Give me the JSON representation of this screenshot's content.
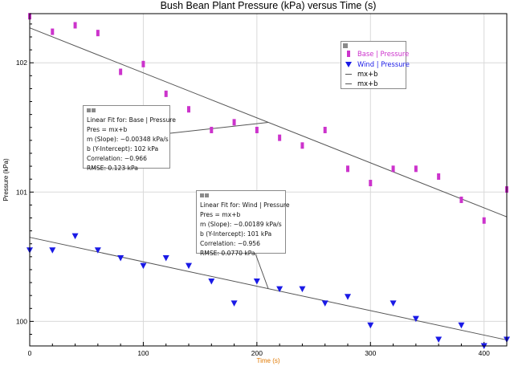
{
  "chart_data": {
    "type": "scatter",
    "title": "Bush Bean Plant Pressure (kPa) versus Time (s)",
    "xlabel": "Time (s)",
    "ylabel": "Pressure (kPa)",
    "xlim": [
      0,
      420
    ],
    "ylim": [
      99.81,
      102.38
    ],
    "xticks": [
      0,
      100,
      200,
      300,
      400
    ],
    "yticks": [
      100,
      101,
      102
    ],
    "grid": true,
    "x_minor_ticks_every": 20,
    "series": [
      {
        "name": "Base | Pressure",
        "color": "#cc33cc",
        "marker": "bar",
        "x": [
          0,
          20,
          40,
          60,
          80,
          100,
          120,
          140,
          160,
          180,
          200,
          220,
          240,
          260,
          280,
          300,
          320,
          340,
          360,
          380,
          400,
          420
        ],
        "y": [
          102.36,
          102.24,
          102.29,
          102.23,
          101.93,
          101.99,
          101.76,
          101.64,
          101.48,
          101.54,
          101.48,
          101.42,
          101.36,
          101.48,
          101.18,
          101.07,
          101.18,
          101.18,
          101.12,
          100.94,
          100.78,
          101.02
        ]
      },
      {
        "name": "Wind | Pressure",
        "color": "#1a1ae6",
        "marker": "triangle-down",
        "x": [
          0,
          20,
          40,
          60,
          80,
          100,
          120,
          140,
          160,
          180,
          200,
          220,
          240,
          260,
          280,
          300,
          320,
          340,
          360,
          380,
          400,
          420
        ],
        "y": [
          100.55,
          100.55,
          100.66,
          100.55,
          100.49,
          100.43,
          100.49,
          100.43,
          100.31,
          100.14,
          100.31,
          100.25,
          100.25,
          100.14,
          100.19,
          99.97,
          100.14,
          100.02,
          99.86,
          99.97,
          99.81,
          99.86
        ]
      }
    ],
    "fit_lines": [
      {
        "legend_label": "mx+b",
        "series": "Base | Pressure",
        "slope": -0.00348,
        "intercept": 102.27
      },
      {
        "legend_label": "mx+b",
        "series": "Wind | Pressure",
        "slope": -0.00189,
        "intercept": 100.65
      }
    ],
    "legend_position": "top-right"
  },
  "fit_boxes": [
    {
      "lines": [
        "Linear Fit for: Base | Pressure",
        "Pres = mx+b",
        "m (Slope): −0.00348 kPa/s",
        "b (Y-Intercept): 102 kPa",
        "Correlation: −0.966",
        "RMSE: 0.123 kPa"
      ]
    },
    {
      "lines": [
        "Linear Fit for: Wind | Pressure",
        "Pres = mx+b",
        "m (Slope): −0.00189 kPa/s",
        "b (Y-Intercept): 101 kPa",
        "Correlation: −0.956",
        "RMSE: 0.0770 kPa"
      ]
    }
  ],
  "colors": {
    "base": "#cc33cc",
    "wind": "#1a1ae6",
    "fit_line": "#555555",
    "grid": "#d9d9d9",
    "xlabel": "#e07800"
  }
}
